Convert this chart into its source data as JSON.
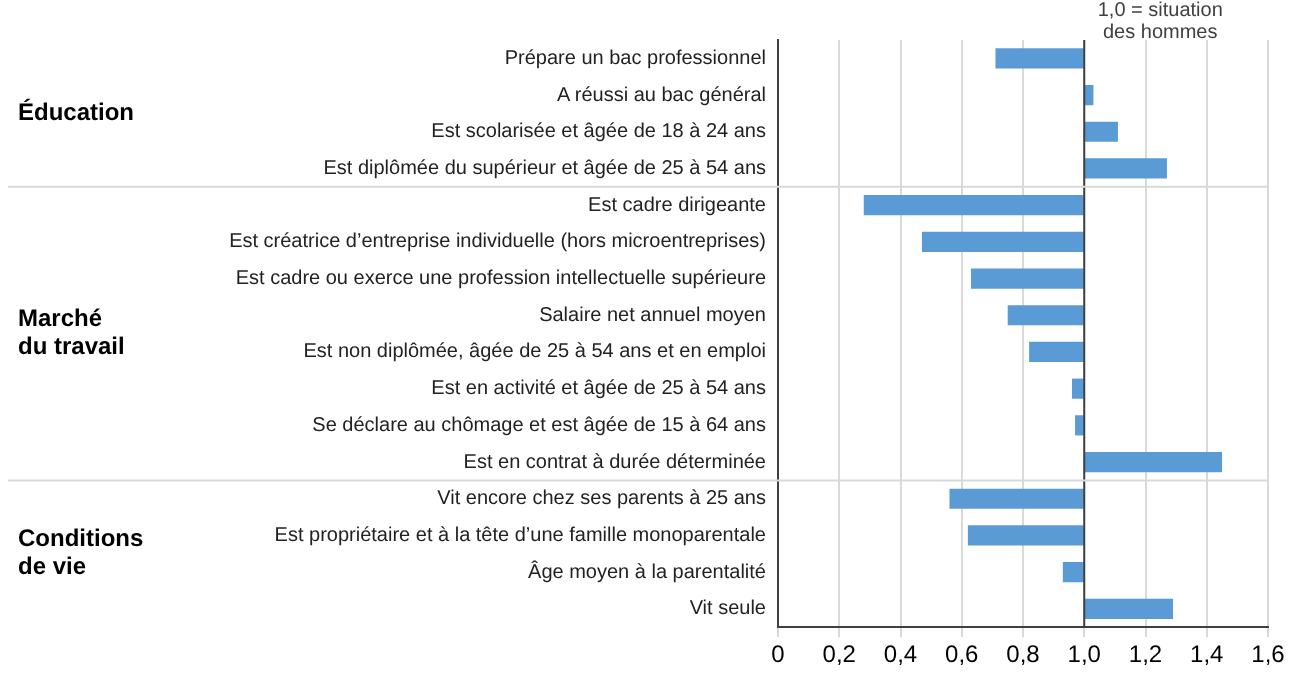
{
  "chart_data": {
    "type": "bar",
    "orientation": "horizontal",
    "categories": [
      "Prépare un bac professionnel",
      "A réussi au bac général",
      "Est scolarisée et âgée de 18 à 24 ans",
      "Est diplômée du supérieur et âgée de 25 à 54 ans",
      "Est cadre dirigeante",
      "Est créatrice d’entreprise individuelle (hors microentreprises)",
      "Est cadre ou exerce une profession intellectuelle supérieure",
      "Salaire net annuel moyen",
      "Est non diplômée, âgée de 25 à 54 ans et en emploi",
      "Est en activité et âgée de 25 à 54 ans",
      "Se déclare au chômage et est âgée de 15 à 64 ans",
      "Est en contrat à durée déterminée",
      "Vit encore chez ses parents à 25 ans",
      "Est propriétaire et à la tête d’une famille monoparentale",
      "Âge moyen à la parentalité",
      "Vit seule"
    ],
    "base": [
      1,
      1,
      1,
      1,
      1,
      1,
      1,
      1,
      1,
      1,
      1,
      1,
      1,
      1,
      1,
      1
    ],
    "values": [
      -0.29,
      0.03,
      0.11,
      0.27,
      -0.72,
      -0.53,
      -0.37,
      -0.25,
      -0.18,
      -0.04,
      -0.03,
      0.45,
      -0.44,
      -0.38,
      -0.07,
      0.29
    ],
    "color": "#5b9bd5",
    "xlim": [
      0,
      1.6
    ],
    "xticks": [
      0,
      {
        "value": 0.2,
        "label": "0,2"
      },
      {
        "value": 0.4,
        "label": "0,4"
      },
      {
        "value": 0.6,
        "label": "0,6"
      },
      {
        "value": 0.8,
        "label": "0,8"
      },
      {
        "value": 1,
        "label": "1,0"
      },
      {
        "value": 1.2,
        "label": "1,2"
      },
      {
        "value": 1.4,
        "label": "1,4"
      },
      {
        "value": 1.6,
        "label": "1,6"
      }
    ],
    "grid": "x",
    "legend": false,
    "ref_lines": [
      {
        "axis": "x",
        "value": 1,
        "label": "1,0 = situation des hommes",
        "color": "#404040"
      }
    ],
    "annotations": [
      "Éducation",
      "Marché du travail",
      "Conditions de vie"
    ]
  }
}
